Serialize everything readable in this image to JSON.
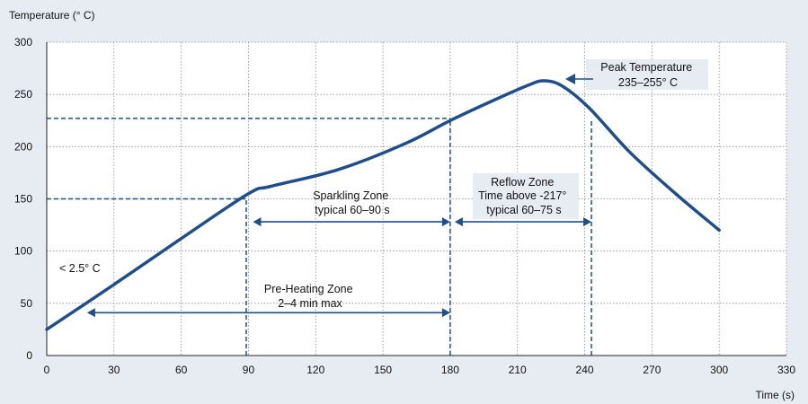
{
  "chart_data": {
    "type": "line",
    "ylabel": "Temperature (° C)",
    "xlabel": "Time (s)",
    "xlim": [
      0,
      330
    ],
    "ylim": [
      0,
      300
    ],
    "x_ticks": [
      0,
      30,
      60,
      90,
      120,
      150,
      180,
      210,
      240,
      270,
      300,
      330
    ],
    "y_ticks": [
      0,
      50,
      100,
      150,
      200,
      250,
      300
    ],
    "grid": true,
    "series": [
      {
        "color": "#1f4e8c",
        "x": [
          0,
          30,
          60,
          90,
          100,
          130,
          160,
          180,
          200,
          215,
          222,
          230,
          242,
          260,
          280,
          300
        ],
        "y": [
          25,
          68,
          112,
          155,
          162,
          178,
          203,
          225,
          245,
          259,
          263,
          258,
          237,
          195,
          156,
          120
        ]
      }
    ],
    "reference_lines": {
      "color": "#1f4e8c",
      "horizontal": [
        {
          "y": 150,
          "x_from": 0,
          "x_to": 89
        },
        {
          "y": 227,
          "x_from": 0,
          "x_to": 180
        }
      ],
      "vertical": [
        {
          "x": 89,
          "y_from": 0,
          "y_to": 150
        },
        {
          "x": 180,
          "y_from": 0,
          "y_to": 227
        },
        {
          "x": 243,
          "y_from": 0,
          "y_to": 227
        }
      ]
    },
    "ranges": [
      {
        "x_from": 18,
        "x_to": 180,
        "y": 41
      },
      {
        "x_from": 92,
        "x_to": 180,
        "y": 128
      },
      {
        "x_from": 182,
        "x_to": 243,
        "y": 128
      }
    ],
    "annotations": {
      "rate": "< 2.5° C",
      "preheat": [
        "Pre-Heating Zone",
        "2–4 min max"
      ],
      "sparkling": [
        "Sparkling Zone",
        "typical 60–90 s"
      ],
      "reflow": [
        "Reflow Zone",
        "Time above  -217°",
        "typical 60–75 s"
      ],
      "peak": [
        "Peak Temperature",
        "235–255° C"
      ]
    }
  }
}
